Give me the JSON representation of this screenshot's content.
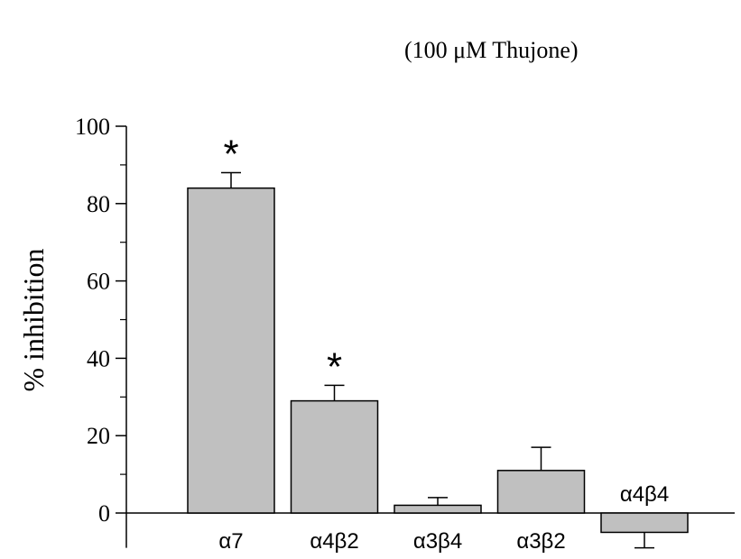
{
  "chart_data": {
    "type": "bar",
    "categories": [
      "α7",
      "α4β2",
      "α3β4",
      "α3β2",
      "α4β4"
    ],
    "values": [
      84,
      29,
      2,
      11,
      -5
    ],
    "errors": [
      4,
      4,
      2,
      6,
      4
    ],
    "significance": [
      "*",
      "*",
      "",
      "",
      ""
    ],
    "ylabel": "% inhibition",
    "xlabel": "",
    "annotation": "(100 μM Thujone)",
    "ylim": [
      -9,
      100
    ],
    "yticks": [
      0,
      20,
      40,
      60,
      80,
      100
    ],
    "yminor_step": 10,
    "bar_color": "#c0c0c0",
    "edge_color": "#000000",
    "grid": false,
    "legend": "none"
  }
}
